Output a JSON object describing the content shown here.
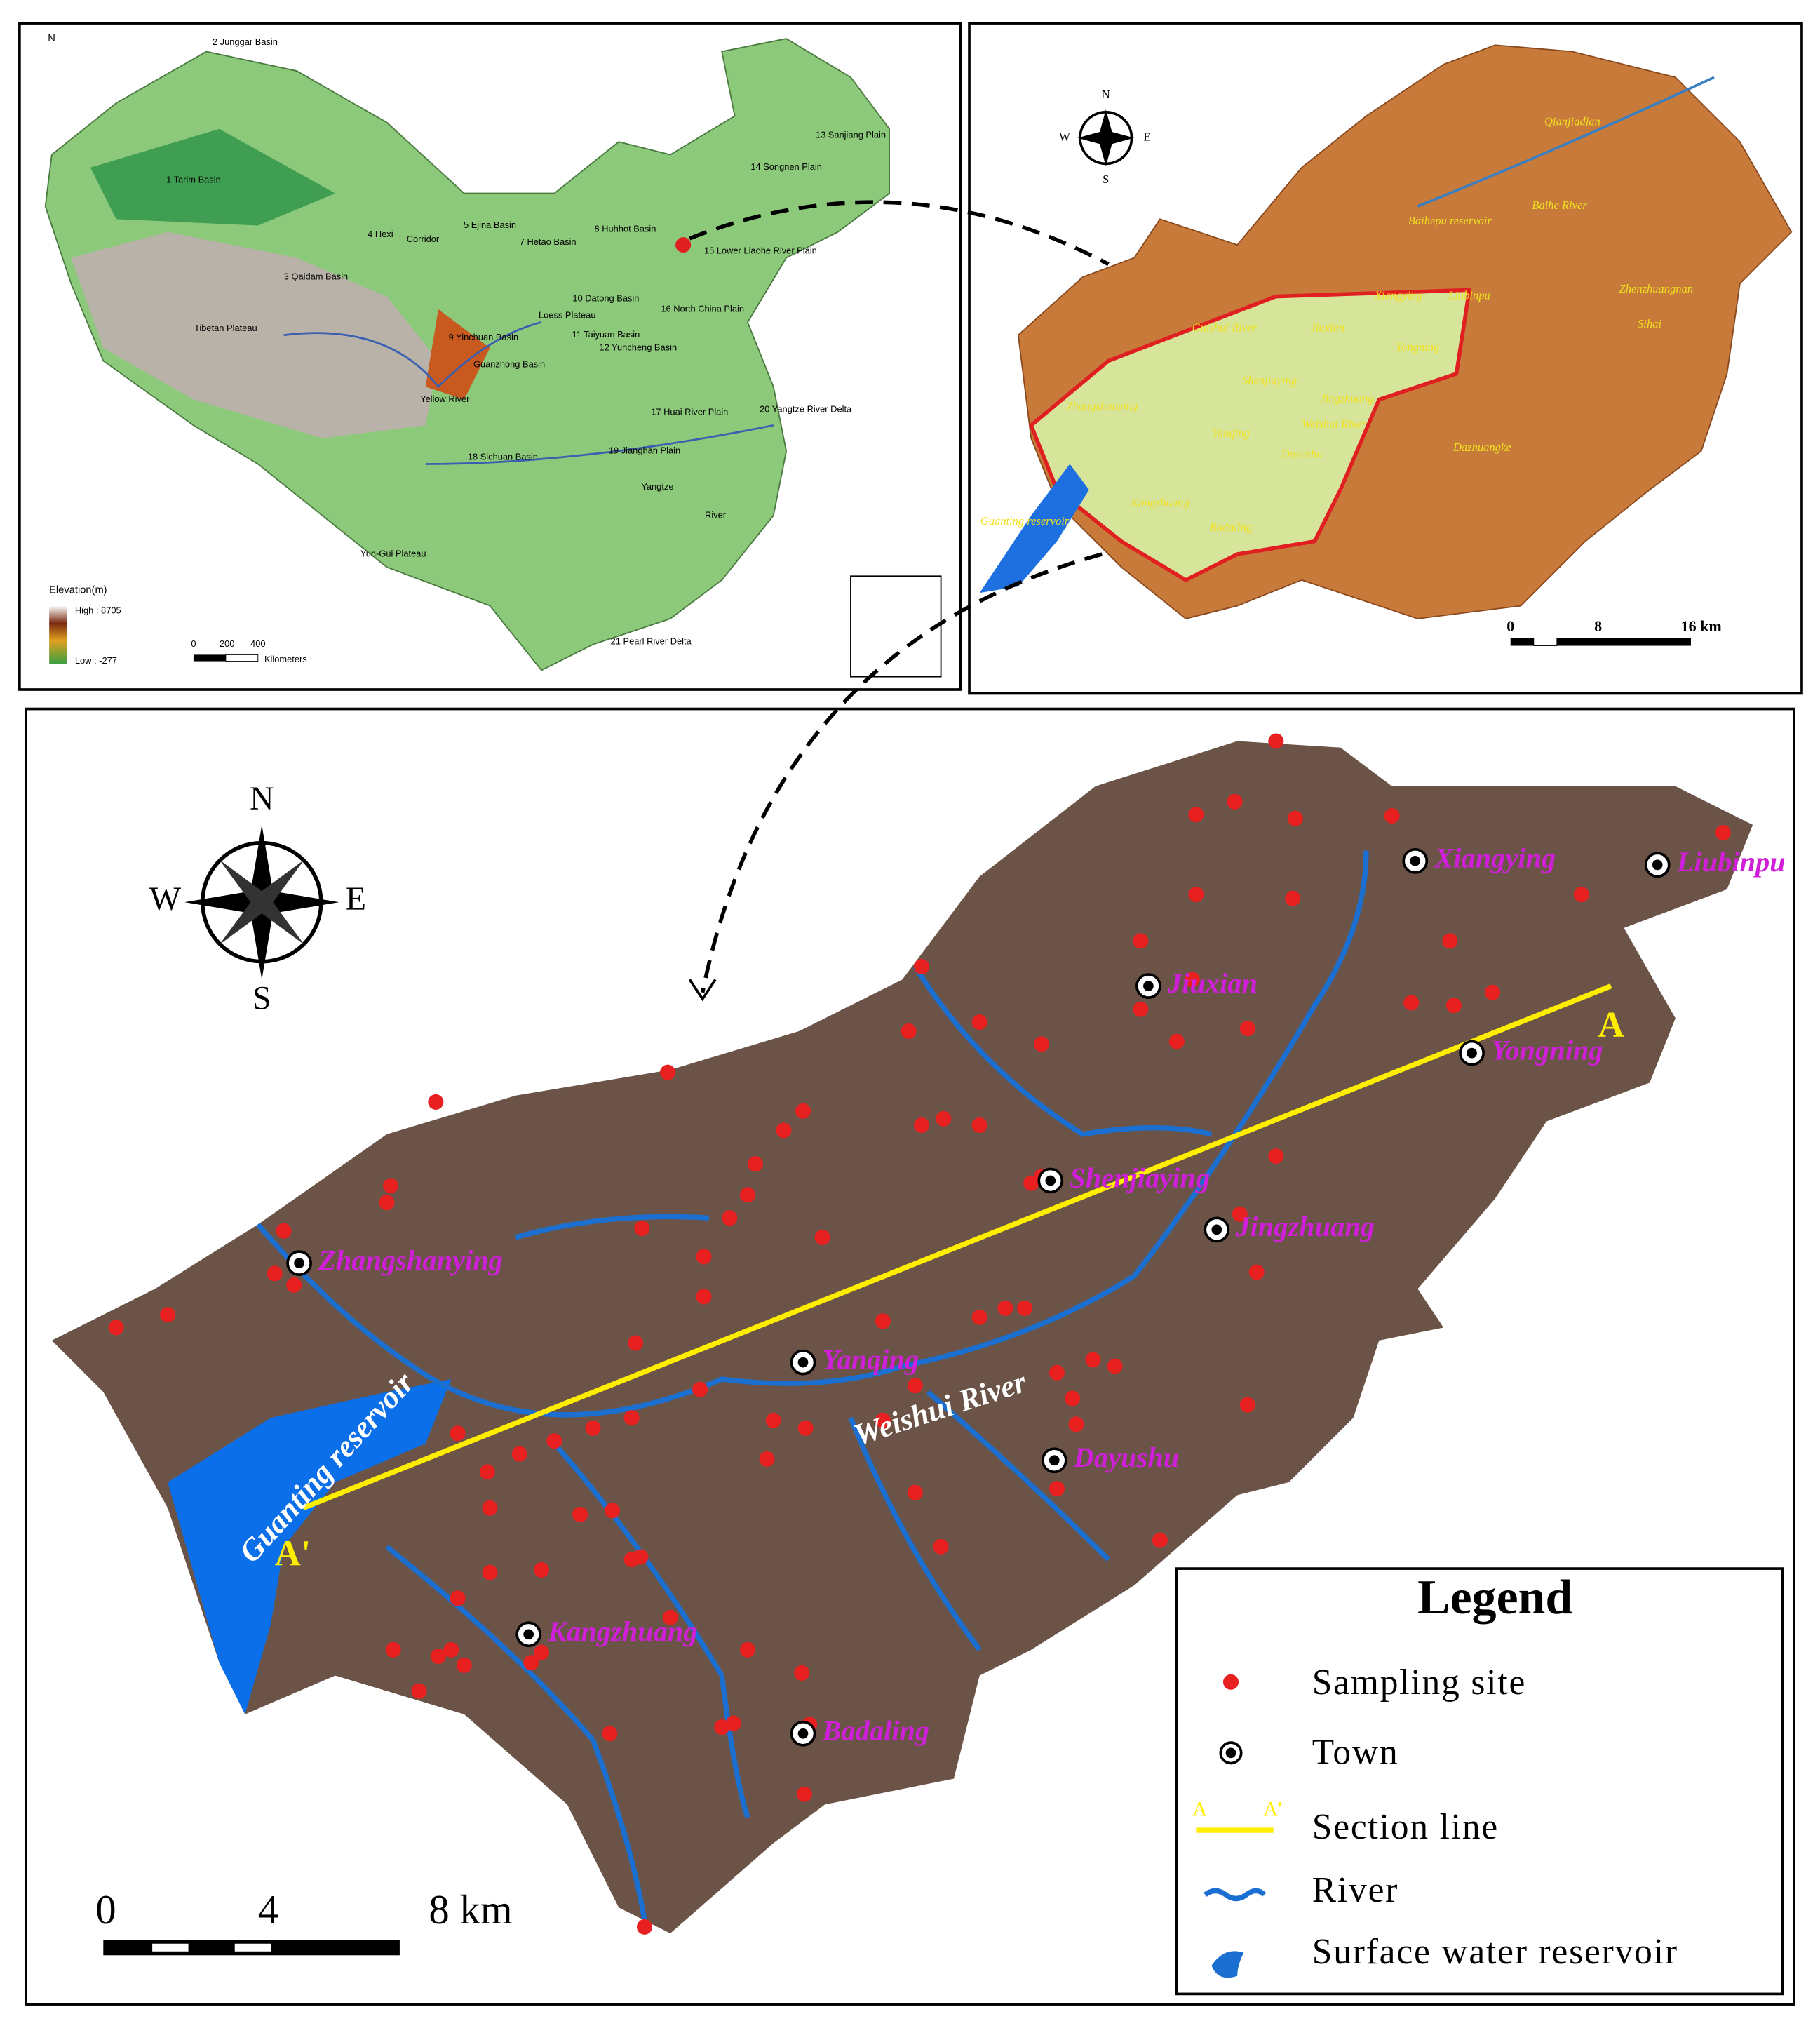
{
  "china_map": {
    "north": "N",
    "labels": [
      "2 Junggar Basin",
      "1 Tarim Basin",
      "3 Qaidam Basin",
      "4 Hexi",
      "Corridor",
      "5 Ejina Basin",
      "7 Hetao Basin",
      "8 Huhhot Basin",
      "9 Yinchuan Basin",
      "10 Datong Basin",
      "Loess Plateau",
      "11 Taiyuan Basin",
      "12 Yuncheng Basin",
      "Guanzhong Basin",
      "13 Sanjiang Plain",
      "14 Songnen Plain",
      "15 Lower Liaohe River Plain",
      "16 North China Plain",
      "17 Huai River Plain",
      "18 Sichuan Basin",
      "19 Jianghan Plain",
      "20 Yangtze River Delta",
      "21 Pearl River Delta",
      "Tibetan Plateau",
      "Yellow River",
      "Yangtze",
      "River",
      "Yun-Gui Plateau"
    ],
    "elevation_title": "Elevation(m)",
    "elevation_high": "High : 8705",
    "elevation_low": "Low : -277",
    "scale": [
      "0",
      "200",
      "400"
    ],
    "scale_unit": "Kilometers"
  },
  "regional_map": {
    "compass": [
      "N",
      "W",
      "E",
      "S"
    ],
    "labels": [
      "Qianjiadian",
      "Baihepu reservoir",
      "Baihe River",
      "Guishui River",
      "Xiangying",
      "Liubinpu",
      "Jiuxian",
      "Yongning",
      "Zhenzhuangnan",
      "Sihai",
      "Shenjiaying",
      "Jingzhuang",
      "Zhangshanying",
      "Weishui River",
      "Yanqing",
      "Dayushu",
      "Dazhuangke",
      "Kangzhuang",
      "Badaling",
      "Guanting reservoir"
    ],
    "scale": [
      "0",
      "8",
      "16 km"
    ]
  },
  "main_map": {
    "compass": [
      "N",
      "W",
      "E",
      "S"
    ],
    "towns": [
      "Xiangying",
      "Liubinpu",
      "Jiuxian",
      "Yongning",
      "Shenjiaying",
      "Jingzhuang",
      "Zhangshanying",
      "Yanqing",
      "Dayushu",
      "Kangzhuang",
      "Badaling"
    ],
    "river_label": "Weishui River",
    "reservoir_label": "Guanting reservoir",
    "section_ends": [
      "A",
      "A'"
    ],
    "scale": [
      "0",
      "4",
      "8 km"
    ],
    "legend": {
      "title": "Legend",
      "items": [
        "Sampling site",
        "Town",
        "Section line",
        "River",
        "Surface water reservoir"
      ]
    }
  }
}
